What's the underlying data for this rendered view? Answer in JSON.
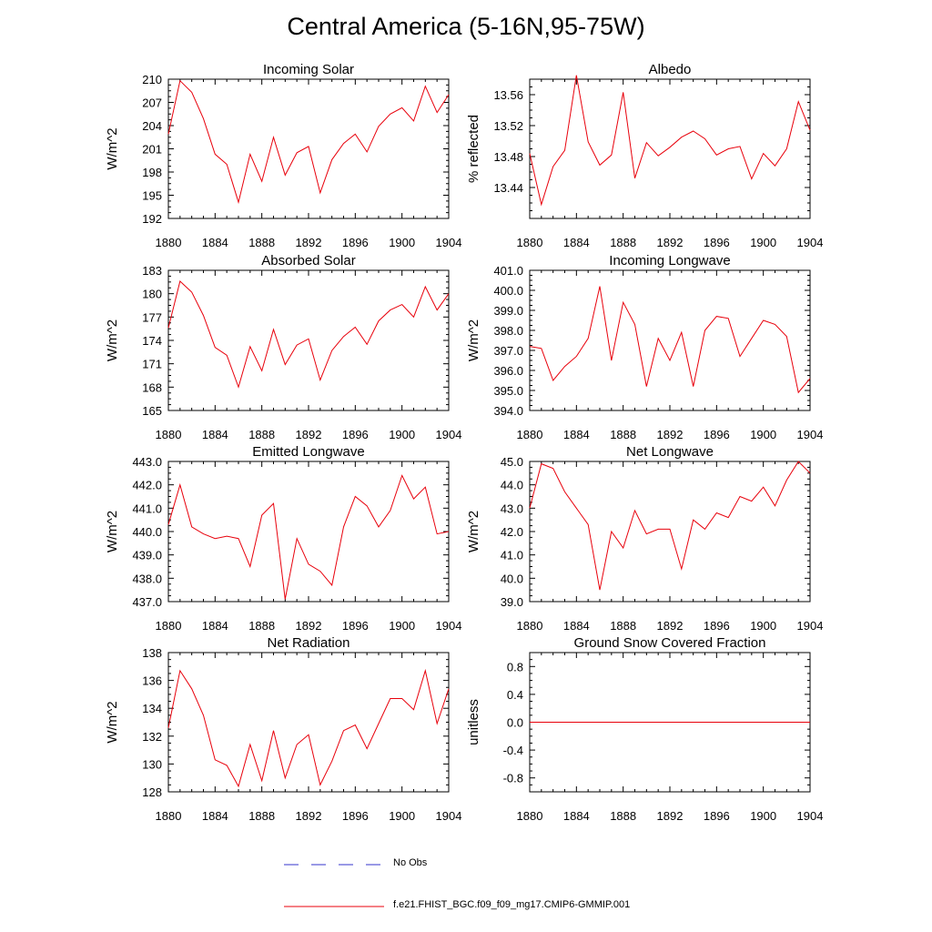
{
  "title": "Central America (5-16N,95-75W)",
  "colors": {
    "series": "#e8000b",
    "obs": "#3333cc",
    "axis": "#000000"
  },
  "legend": {
    "entries": [
      {
        "label": "No Obs",
        "style": "dashed",
        "color": "#3333cc"
      },
      {
        "label": "f.e21.FHIST_BGC.f09_f09_mg17.CMIP6-GMMIP.001",
        "style": "solid",
        "color": "#e8000b"
      }
    ]
  },
  "chart_data": [
    {
      "type": "line",
      "title": "Incoming Solar",
      "ylabel": "W/m^2",
      "xlim": [
        1880,
        1904
      ],
      "xticks": [
        1880,
        1884,
        1888,
        1892,
        1896,
        1900,
        1904
      ],
      "ylim": [
        192,
        210
      ],
      "yticks": [
        "192",
        "195",
        "198",
        "201",
        "204",
        "207",
        "210"
      ],
      "x": [
        1880,
        1881,
        1882,
        1883,
        1884,
        1885,
        1886,
        1887,
        1888,
        1889,
        1890,
        1891,
        1892,
        1893,
        1894,
        1895,
        1896,
        1897,
        1898,
        1899,
        1900,
        1901,
        1902,
        1903,
        1904
      ],
      "values": [
        202.9,
        209.8,
        208.3,
        204.9,
        200.3,
        199.0,
        194.1,
        200.3,
        196.8,
        202.5,
        197.6,
        200.5,
        201.3,
        195.3,
        199.6,
        201.7,
        202.9,
        200.6,
        203.9,
        205.5,
        206.3,
        204.6,
        209.1,
        205.7,
        208.0
      ]
    },
    {
      "type": "line",
      "title": "Albedo",
      "ylabel": "% reflected",
      "xlim": [
        1880,
        1904
      ],
      "xticks": [
        1880,
        1884,
        1888,
        1892,
        1896,
        1900,
        1904
      ],
      "ylim": [
        13.4,
        13.58
      ],
      "yticks": [
        "13.44",
        "13.48",
        "13.52",
        "13.56"
      ],
      "x": [
        1880,
        1881,
        1882,
        1883,
        1884,
        1885,
        1886,
        1887,
        1888,
        1889,
        1890,
        1891,
        1892,
        1893,
        1894,
        1895,
        1896,
        1897,
        1898,
        1899,
        1900,
        1901,
        1902,
        1903,
        1904
      ],
      "values": [
        13.484,
        13.418,
        13.467,
        13.488,
        13.585,
        13.499,
        13.469,
        13.482,
        13.563,
        13.452,
        13.498,
        13.481,
        13.492,
        13.505,
        13.513,
        13.503,
        13.482,
        13.49,
        13.493,
        13.451,
        13.484,
        13.468,
        13.49,
        13.551,
        13.514
      ]
    },
    {
      "type": "line",
      "title": "Absorbed Solar",
      "ylabel": "W/m^2",
      "xlim": [
        1880,
        1904
      ],
      "xticks": [
        1880,
        1884,
        1888,
        1892,
        1896,
        1900,
        1904
      ],
      "ylim": [
        165,
        183
      ],
      "yticks": [
        "165",
        "168",
        "171",
        "174",
        "177",
        "180",
        "183"
      ],
      "x": [
        1880,
        1881,
        1882,
        1883,
        1884,
        1885,
        1886,
        1887,
        1888,
        1889,
        1890,
        1891,
        1892,
        1893,
        1894,
        1895,
        1896,
        1897,
        1898,
        1899,
        1900,
        1901,
        1902,
        1903,
        1904
      ],
      "values": [
        175.6,
        181.6,
        180.2,
        177.2,
        173.1,
        172.1,
        168.0,
        173.2,
        170.1,
        175.4,
        170.9,
        173.4,
        174.2,
        168.9,
        172.7,
        174.5,
        175.7,
        173.5,
        176.5,
        177.9,
        178.6,
        177.0,
        180.9,
        177.9,
        180.0
      ]
    },
    {
      "type": "line",
      "title": "Incoming Longwave",
      "ylabel": "W/m^2",
      "xlim": [
        1880,
        1904
      ],
      "xticks": [
        1880,
        1884,
        1888,
        1892,
        1896,
        1900,
        1904
      ],
      "ylim": [
        394,
        401
      ],
      "yticks": [
        "394.0",
        "395.0",
        "396.0",
        "397.0",
        "398.0",
        "399.0",
        "400.0",
        "401.0"
      ],
      "x": [
        1880,
        1881,
        1882,
        1883,
        1884,
        1885,
        1886,
        1887,
        1888,
        1889,
        1890,
        1891,
        1892,
        1893,
        1894,
        1895,
        1896,
        1897,
        1898,
        1899,
        1900,
        1901,
        1902,
        1903,
        1904
      ],
      "values": [
        397.2,
        397.1,
        395.5,
        396.2,
        396.7,
        397.6,
        400.2,
        396.5,
        399.4,
        398.3,
        395.2,
        397.6,
        396.5,
        397.9,
        395.2,
        398.0,
        398.7,
        398.6,
        396.7,
        397.6,
        398.5,
        398.3,
        397.7,
        394.9,
        395.6
      ]
    },
    {
      "type": "line",
      "title": "Emitted Longwave",
      "ylabel": "W/m^2",
      "xlim": [
        1880,
        1904
      ],
      "xticks": [
        1880,
        1884,
        1888,
        1892,
        1896,
        1900,
        1904
      ],
      "ylim": [
        437,
        443
      ],
      "yticks": [
        "437.0",
        "438.0",
        "439.0",
        "440.0",
        "441.0",
        "442.0",
        "443.0"
      ],
      "x": [
        1880,
        1881,
        1882,
        1883,
        1884,
        1885,
        1886,
        1887,
        1888,
        1889,
        1890,
        1891,
        1892,
        1893,
        1894,
        1895,
        1896,
        1897,
        1898,
        1899,
        1900,
        1901,
        1902,
        1903,
        1904
      ],
      "values": [
        440.3,
        442.0,
        440.2,
        439.9,
        439.7,
        439.8,
        439.7,
        438.5,
        440.7,
        441.2,
        437.1,
        439.7,
        438.6,
        438.3,
        437.7,
        440.2,
        441.5,
        441.1,
        440.2,
        440.9,
        442.4,
        441.4,
        441.9,
        439.9,
        440.0
      ]
    },
    {
      "type": "line",
      "title": "Net Longwave",
      "ylabel": "W/m^2",
      "xlim": [
        1880,
        1904
      ],
      "xticks": [
        1880,
        1884,
        1888,
        1892,
        1896,
        1900,
        1904
      ],
      "ylim": [
        39,
        45
      ],
      "yticks": [
        "39.0",
        "40.0",
        "41.0",
        "42.0",
        "43.0",
        "44.0",
        "45.0"
      ],
      "x": [
        1880,
        1881,
        1882,
        1883,
        1884,
        1885,
        1886,
        1887,
        1888,
        1889,
        1890,
        1891,
        1892,
        1893,
        1894,
        1895,
        1896,
        1897,
        1898,
        1899,
        1900,
        1901,
        1902,
        1903,
        1904
      ],
      "values": [
        43.0,
        44.9,
        44.7,
        43.7,
        43.0,
        42.3,
        39.5,
        42.0,
        41.3,
        42.9,
        41.9,
        42.1,
        42.1,
        40.4,
        42.5,
        42.1,
        42.8,
        42.6,
        43.5,
        43.3,
        43.9,
        43.1,
        44.2,
        45.0,
        44.5
      ]
    },
    {
      "type": "line",
      "title": "Net Radiation",
      "ylabel": "W/m^2",
      "xlim": [
        1880,
        1904
      ],
      "xticks": [
        1880,
        1884,
        1888,
        1892,
        1896,
        1900,
        1904
      ],
      "ylim": [
        128,
        138
      ],
      "yticks": [
        "128",
        "130",
        "132",
        "134",
        "136",
        "138"
      ],
      "x": [
        1880,
        1881,
        1882,
        1883,
        1884,
        1885,
        1886,
        1887,
        1888,
        1889,
        1890,
        1891,
        1892,
        1893,
        1894,
        1895,
        1896,
        1897,
        1898,
        1899,
        1900,
        1901,
        1902,
        1903,
        1904
      ],
      "values": [
        132.6,
        136.7,
        135.4,
        133.5,
        130.3,
        129.9,
        128.4,
        131.4,
        128.8,
        132.4,
        129.0,
        131.4,
        132.1,
        128.5,
        130.2,
        132.4,
        132.8,
        131.1,
        132.9,
        134.7,
        134.7,
        133.9,
        136.7,
        132.9,
        135.4
      ]
    },
    {
      "type": "line",
      "title": "Ground Snow Covered Fraction",
      "ylabel": "unitless",
      "xlim": [
        1880,
        1904
      ],
      "xticks": [
        1880,
        1884,
        1888,
        1892,
        1896,
        1900,
        1904
      ],
      "ylim": [
        -1,
        1
      ],
      "yticks": [
        "-0.8",
        "-0.4",
        "0.0",
        "0.4",
        "0.8"
      ],
      "x": [
        1880,
        1904
      ],
      "values": [
        0.0,
        0.0
      ]
    }
  ]
}
